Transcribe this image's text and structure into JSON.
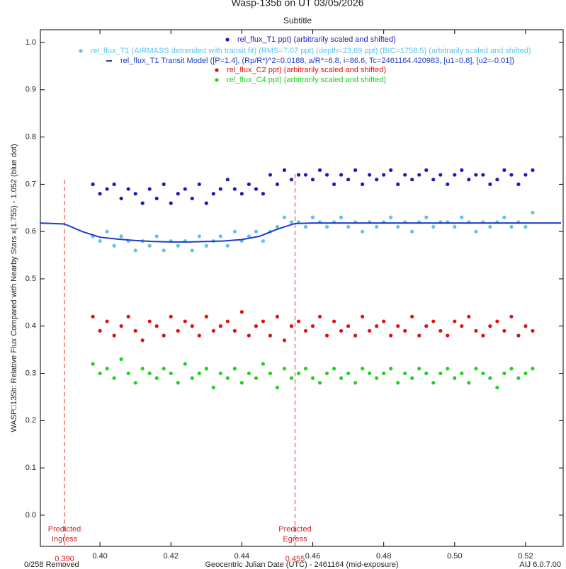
{
  "chart_data": {
    "type": "scatter",
    "title": "Wasp-135b on UT 03/05/2026",
    "subtitle": "Subtitle",
    "x_label": "Geocentric Julian Date (UTC) - 2461164 (mid-exposure)",
    "y_label": "WASP□135b: Relative Flux Compared with Nearby Stars x(1.755) - 1.052 (blue dot)",
    "removed_note": "0/258 Removed",
    "version": "AIJ 6.0.7.00",
    "xlim": [
      0.3832,
      0.5306
    ],
    "ylim": [
      -0.066,
      1.027
    ],
    "xticks": [
      {
        "value": 0.4,
        "label": "0.40"
      },
      0.42,
      0.44,
      0.46,
      0.48,
      {
        "value": 0.5,
        "label": "0.50"
      },
      0.52
    ],
    "yticks": [
      {
        "value": 0,
        "label": "0.0"
      },
      0.1,
      0.2,
      0.3,
      0.4,
      0.5,
      0.6,
      0.7,
      0.8,
      0.9,
      {
        "value": 1.0,
        "label": "1.0"
      }
    ],
    "predicted": [
      {
        "value": 0.39,
        "label": "0.390",
        "lines": [
          "Predicted",
          "Ingress"
        ]
      },
      {
        "value": 0.455,
        "label": "0.455",
        "lines": [
          "Predicted",
          "Egress"
        ]
      }
    ],
    "x": [
      0.398,
      0.4,
      0.402,
      0.404,
      0.406,
      0.408,
      0.41,
      0.412,
      0.414,
      0.416,
      0.418,
      0.42,
      0.422,
      0.424,
      0.426,
      0.428,
      0.43,
      0.432,
      0.434,
      0.436,
      0.438,
      0.44,
      0.442,
      0.444,
      0.446,
      0.448,
      0.45,
      0.452,
      0.454,
      0.456,
      0.458,
      0.46,
      0.462,
      0.464,
      0.466,
      0.468,
      0.47,
      0.472,
      0.474,
      0.476,
      0.478,
      0.48,
      0.482,
      0.484,
      0.486,
      0.488,
      0.49,
      0.492,
      0.494,
      0.496,
      0.498,
      0.5,
      0.502,
      0.504,
      0.506,
      0.508,
      0.51,
      0.512,
      0.514,
      0.516,
      0.518,
      0.52,
      0.522
    ],
    "series": [
      {
        "name": "rel_flux_T1 ppt) (arbitrarily scaled and shifted)",
        "color": "#1c1cb8",
        "kind": "dot",
        "values": [
          0.7,
          0.68,
          0.69,
          0.7,
          0.67,
          0.69,
          0.68,
          0.66,
          0.69,
          0.67,
          0.7,
          0.66,
          0.68,
          0.69,
          0.67,
          0.7,
          0.66,
          0.68,
          0.69,
          0.71,
          0.69,
          0.68,
          0.7,
          0.69,
          0.68,
          0.72,
          0.7,
          0.73,
          0.71,
          0.72,
          0.72,
          0.71,
          0.73,
          0.72,
          0.7,
          0.72,
          0.71,
          0.73,
          0.7,
          0.72,
          0.71,
          0.72,
          0.73,
          0.7,
          0.72,
          0.71,
          0.72,
          0.73,
          0.71,
          0.72,
          0.7,
          0.72,
          0.73,
          0.71,
          0.72,
          0.72,
          0.7,
          0.71,
          0.73,
          0.72,
          0.7,
          0.72,
          0.73
        ]
      },
      {
        "name": "rel_flux_T1 (AIRMASS detrended with transit fit) (RMS=7.07 ppt) (depth=23.69 ppt) (BIC=1758.5) (arbitrarily scaled and shifted)",
        "color": "#5ec4ea",
        "kind": "dot",
        "values": [
          0.59,
          0.58,
          0.6,
          0.57,
          0.59,
          0.58,
          0.56,
          0.58,
          0.57,
          0.59,
          0.56,
          0.58,
          0.57,
          0.58,
          0.56,
          0.59,
          0.57,
          0.58,
          0.59,
          0.57,
          0.6,
          0.58,
          0.59,
          0.6,
          0.58,
          0.6,
          0.61,
          0.63,
          0.62,
          0.62,
          0.61,
          0.63,
          0.62,
          0.61,
          0.62,
          0.63,
          0.61,
          0.62,
          0.6,
          0.62,
          0.61,
          0.62,
          0.63,
          0.61,
          0.62,
          0.6,
          0.62,
          0.63,
          0.61,
          0.62,
          0.62,
          0.61,
          0.63,
          0.62,
          0.6,
          0.62,
          0.61,
          0.62,
          0.63,
          0.61,
          0.62,
          0.61,
          0.64
        ]
      },
      {
        "name": "rel_flux_T1 Transit Model ([P=1.4], (Rp/R*)^2=0.0188, a/R*=6.8, i=86.6, Tc=2461164.420983, [u1=0.8], [u2=-0.01])",
        "color": "#1c3cc8",
        "kind": "line",
        "x": [
          0.383,
          0.39,
          0.395,
          0.4,
          0.405,
          0.41,
          0.415,
          0.42,
          0.425,
          0.43,
          0.435,
          0.44,
          0.445,
          0.45,
          0.455,
          0.46,
          0.47,
          0.48,
          0.49,
          0.5,
          0.51,
          0.52,
          0.53
        ],
        "values": [
          0.618,
          0.616,
          0.6,
          0.588,
          0.584,
          0.581,
          0.579,
          0.578,
          0.578,
          0.579,
          0.58,
          0.583,
          0.59,
          0.605,
          0.617,
          0.618,
          0.618,
          0.618,
          0.618,
          0.618,
          0.618,
          0.618,
          0.618
        ]
      },
      {
        "name": "rel_flux_C2 ppt) (arbitrarily scaled and shifted)",
        "color": "#e01010",
        "kind": "dot",
        "values": [
          0.42,
          0.39,
          0.41,
          0.38,
          0.4,
          0.42,
          0.39,
          0.37,
          0.41,
          0.4,
          0.38,
          0.42,
          0.39,
          0.41,
          0.4,
          0.38,
          0.42,
          0.39,
          0.4,
          0.41,
          0.39,
          0.43,
          0.38,
          0.4,
          0.41,
          0.38,
          0.42,
          0.37,
          0.4,
          0.41,
          0.39,
          0.4,
          0.42,
          0.38,
          0.41,
          0.39,
          0.4,
          0.38,
          0.42,
          0.39,
          0.4,
          0.41,
          0.38,
          0.4,
          0.39,
          0.42,
          0.38,
          0.4,
          0.41,
          0.39,
          0.38,
          0.41,
          0.4,
          0.42,
          0.39,
          0.38,
          0.4,
          0.41,
          0.39,
          0.42,
          0.38,
          0.4,
          0.39
        ]
      },
      {
        "name": "rel_flux_C4 ppt) (arbitrarily scaled and shifted)",
        "color": "#22d022",
        "kind": "dot",
        "values": [
          0.32,
          0.3,
          0.31,
          0.29,
          0.33,
          0.3,
          0.28,
          0.31,
          0.3,
          0.29,
          0.31,
          0.3,
          0.28,
          0.32,
          0.29,
          0.3,
          0.31,
          0.27,
          0.3,
          0.29,
          0.31,
          0.28,
          0.3,
          0.29,
          0.32,
          0.3,
          0.27,
          0.31,
          0.29,
          0.3,
          0.31,
          0.29,
          0.28,
          0.3,
          0.31,
          0.29,
          0.3,
          0.28,
          0.31,
          0.3,
          0.29,
          0.3,
          0.31,
          0.28,
          0.3,
          0.29,
          0.31,
          0.3,
          0.28,
          0.3,
          0.31,
          0.29,
          0.3,
          0.28,
          0.31,
          0.3,
          0.29,
          0.27,
          0.3,
          0.31,
          0.29,
          0.3,
          0.31
        ]
      }
    ]
  }
}
